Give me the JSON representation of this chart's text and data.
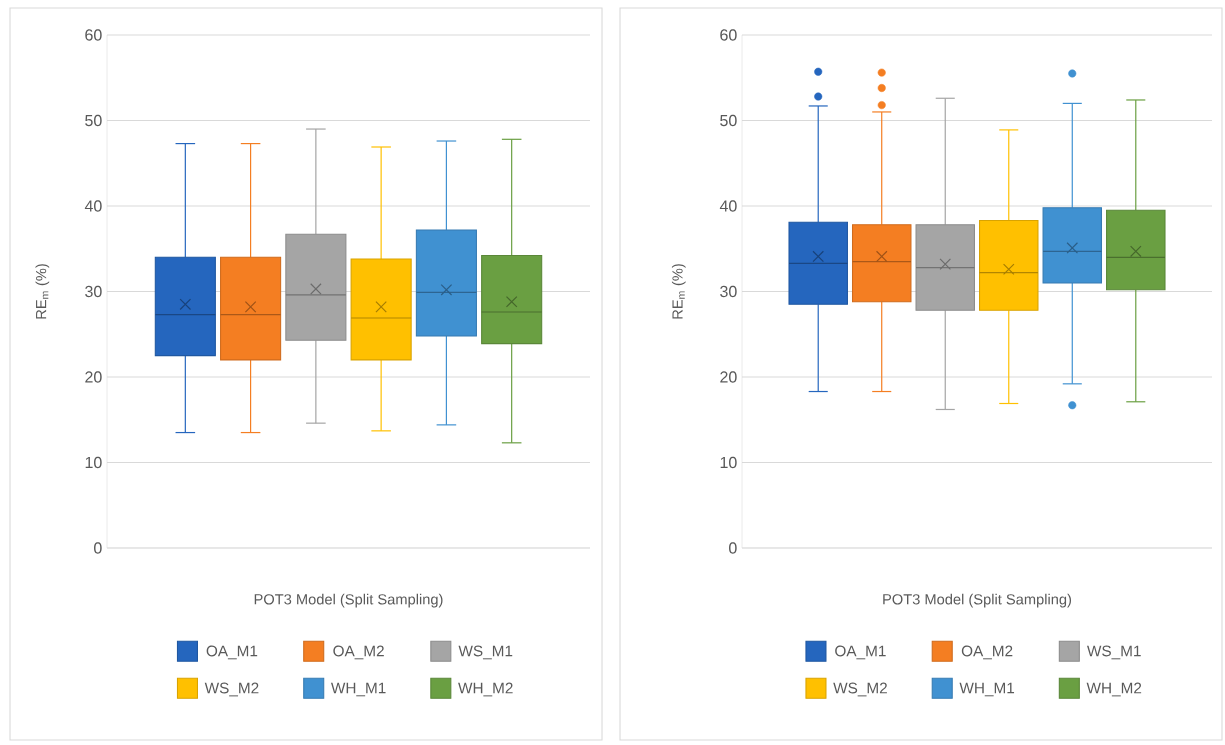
{
  "chart_data": [
    {
      "type": "box",
      "xlabel": "POT3 Model (Split Sampling)",
      "ylabel": "RE$_{m}$ (%)",
      "categories": [
        null
      ],
      "ylim": [
        0,
        60
      ],
      "yticks": [
        0,
        10,
        20,
        30,
        40,
        50,
        60
      ],
      "grid": "y",
      "legend": "bottom",
      "series": [
        {
          "name": "OA_M1",
          "color": "#2566be",
          "boxes": [
            {
              "low": 13.5,
              "q1": 22.5,
              "median": 27.3,
              "q3": 34.0,
              "high": 47.3,
              "mean": 28.5
            }
          ]
        },
        {
          "name": "OA_M2",
          "color": "#f47e22",
          "boxes": [
            {
              "low": 13.5,
              "q1": 22.0,
              "median": 27.3,
              "q3": 34.0,
              "high": 47.3,
              "mean": 28.2
            }
          ]
        },
        {
          "name": "WS_M1",
          "color": "#a5a5a5",
          "boxes": [
            {
              "low": 14.6,
              "q1": 24.3,
              "median": 29.6,
              "q3": 36.7,
              "high": 49.0,
              "mean": 30.3
            }
          ]
        },
        {
          "name": "WS_M2",
          "color": "#ffc000",
          "boxes": [
            {
              "low": 13.7,
              "q1": 22.0,
              "median": 26.9,
              "q3": 33.8,
              "high": 46.9,
              "mean": 28.2
            }
          ]
        },
        {
          "name": "WH_M1",
          "color": "#4091d1",
          "boxes": [
            {
              "low": 14.4,
              "q1": 24.8,
              "median": 29.9,
              "q3": 37.2,
              "high": 47.6,
              "mean": 30.2
            }
          ]
        },
        {
          "name": "WH_M2",
          "color": "#6a9f42",
          "boxes": [
            {
              "low": 12.3,
              "q1": 23.9,
              "median": 27.6,
              "q3": 34.2,
              "high": 47.8,
              "mean": 28.8
            }
          ]
        }
      ]
    },
    {
      "type": "box",
      "xlabel": "POT3 Model (Split Sampling)",
      "ylabel": "RE$_{m}$ (%)",
      "categories": [
        null
      ],
      "ylim": [
        0,
        60
      ],
      "yticks": [
        0,
        10,
        20,
        30,
        40,
        50,
        60
      ],
      "grid": "y",
      "legend": "bottom",
      "series": [
        {
          "name": "OA_M1",
          "color": "#2566be",
          "boxes": [
            {
              "low": 18.3,
              "q1": 28.5,
              "median": 33.3,
              "q3": 38.1,
              "high": 51.7,
              "mean": 34.1,
              "outliers": [
                55.7,
                52.8
              ]
            }
          ]
        },
        {
          "name": "OA_M2",
          "color": "#f47e22",
          "boxes": [
            {
              "low": 18.3,
              "q1": 28.8,
              "median": 33.5,
              "q3": 37.8,
              "high": 51.0,
              "mean": 34.1,
              "outliers": [
                55.6,
                53.8,
                51.8
              ]
            }
          ]
        },
        {
          "name": "WS_M1",
          "color": "#a5a5a5",
          "boxes": [
            {
              "low": 16.2,
              "q1": 27.8,
              "median": 32.8,
              "q3": 37.8,
              "high": 52.6,
              "mean": 33.2
            }
          ]
        },
        {
          "name": "WS_M2",
          "color": "#ffc000",
          "boxes": [
            {
              "low": 16.9,
              "q1": 27.8,
              "median": 32.2,
              "q3": 38.3,
              "high": 48.9,
              "mean": 32.6
            }
          ]
        },
        {
          "name": "WH_M1",
          "color": "#4091d1",
          "boxes": [
            {
              "low": 19.2,
              "q1": 31.0,
              "median": 34.7,
              "q3": 39.8,
              "high": 52.0,
              "mean": 35.1,
              "outliers": [
                55.5,
                16.7
              ]
            }
          ]
        },
        {
          "name": "WH_M2",
          "color": "#6a9f42",
          "boxes": [
            {
              "low": 17.1,
              "q1": 30.2,
              "median": 34.0,
              "q3": 39.5,
              "high": 52.4,
              "mean": 34.7
            }
          ]
        }
      ]
    }
  ]
}
